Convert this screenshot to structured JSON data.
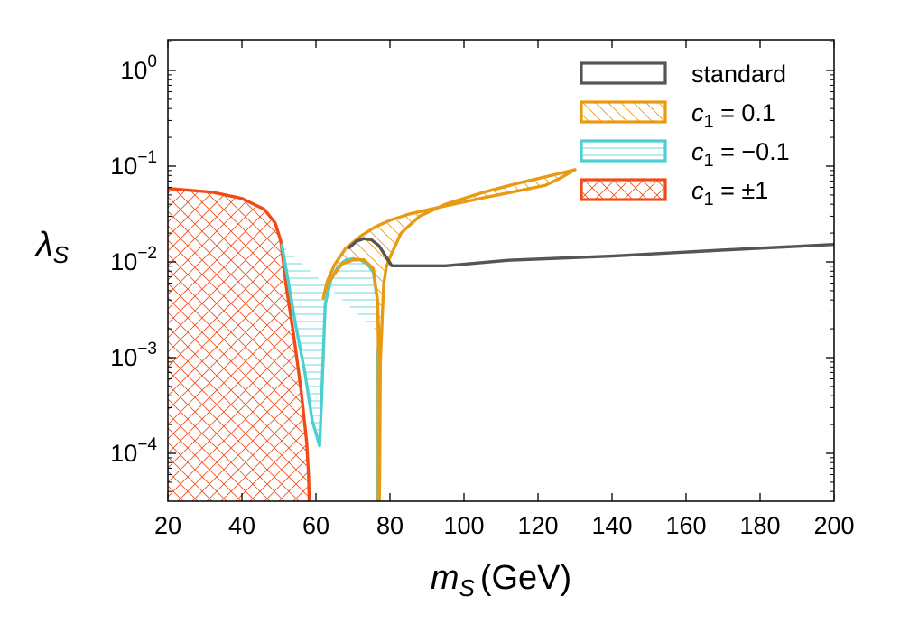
{
  "chart_data": {
    "type": "area",
    "title": "",
    "xlabel": {
      "symbol": "m",
      "subscript": "S",
      "unit": "(GeV)"
    },
    "ylabel": {
      "symbol": "λ",
      "subscript": "S"
    },
    "xlim": [
      20,
      200
    ],
    "ylim": [
      3e-05,
      2.5
    ],
    "yscale": "log",
    "grid": false,
    "legend_position": "top-right",
    "x_ticks": [
      20,
      40,
      60,
      80,
      100,
      120,
      140,
      160,
      180,
      200
    ],
    "x_tick_labels": [
      "20",
      "40",
      "60",
      "80",
      "100",
      "120",
      "140",
      "160",
      "180",
      "200"
    ],
    "y_ticks": [
      {
        "value": 0.0001,
        "base": "10",
        "exp": "−4"
      },
      {
        "value": 0.001,
        "base": "10",
        "exp": "−3"
      },
      {
        "value": 0.01,
        "base": "10",
        "exp": "−2"
      },
      {
        "value": 0.1,
        "base": "10",
        "exp": "−1"
      },
      {
        "value": 1,
        "base": "10",
        "exp": "0"
      }
    ],
    "series": [
      {
        "name": "standard",
        "label_parts": {
          "text": "standard"
        },
        "color": "#555555",
        "hatch": "none",
        "points": [
          [
            69,
            0.0141
          ],
          [
            71,
            0.0165
          ],
          [
            73,
            0.0175
          ],
          [
            75,
            0.017
          ],
          [
            77,
            0.0148
          ],
          [
            79,
            0.0112
          ],
          [
            80.5,
            0.0091
          ],
          [
            95,
            0.0091
          ],
          [
            112,
            0.0104
          ],
          [
            140,
            0.0115
          ],
          [
            170,
            0.0133
          ],
          [
            200,
            0.0152
          ]
        ]
      },
      {
        "name": "c1 = 0.1",
        "label_parts": {
          "symbol": "c",
          "subscript": "1",
          "value": " = 0.1"
        },
        "color": "#e89a12",
        "hatch": "backslash",
        "points": [
          [
            62,
            0.0042
          ],
          [
            63,
            0.0062
          ],
          [
            65,
            0.0093
          ],
          [
            68,
            0.0138
          ],
          [
            72,
            0.0185
          ],
          [
            76,
            0.0232
          ],
          [
            80,
            0.0272
          ],
          [
            85,
            0.0315
          ],
          [
            95,
            0.0385
          ],
          [
            105,
            0.0465
          ],
          [
            115,
            0.0555
          ],
          [
            122,
            0.063
          ],
          [
            126,
            0.075
          ],
          [
            130,
            0.092
          ],
          [
            123,
            0.079
          ],
          [
            115,
            0.067
          ],
          [
            105,
            0.053
          ],
          [
            95,
            0.04
          ],
          [
            88,
            0.03
          ],
          [
            83,
            0.02
          ],
          [
            80,
            0.0112
          ],
          [
            79,
            0.0088
          ],
          [
            78.3,
            0.0058
          ],
          [
            77.8,
            0.0021
          ],
          [
            77.4,
            0.0009
          ],
          [
            77.2,
            5e-05
          ],
          [
            77.1,
            3e-05
          ],
          [
            76.9,
            3e-05
          ],
          [
            76.9,
            0.0011
          ],
          [
            76.7,
            0.0038
          ],
          [
            75.5,
            0.0085
          ],
          [
            73,
            0.0105
          ],
          [
            70,
            0.0105
          ],
          [
            67,
            0.0095
          ],
          [
            65,
            0.0075
          ],
          [
            63,
            0.0058
          ],
          [
            62,
            0.0042
          ]
        ]
      },
      {
        "name": "c1 = −0.1",
        "label_parts": {
          "symbol": "c",
          "subscript": "1",
          "value": " = −0.1"
        },
        "color": "#4ccfd0",
        "hatch": "horizontal",
        "points": [
          [
            50.8,
            0.015
          ],
          [
            52.5,
            0.0063
          ],
          [
            54.5,
            0.0022
          ],
          [
            57,
            0.0007
          ],
          [
            59,
            0.00022
          ],
          [
            61,
            0.00012
          ],
          [
            61.5,
            0.00035
          ],
          [
            62.5,
            0.0036
          ],
          [
            64,
            0.0064
          ],
          [
            66,
            0.009
          ],
          [
            68,
            0.0104
          ],
          [
            70,
            0.0108
          ],
          [
            72,
            0.0105
          ],
          [
            74,
            0.0094
          ],
          [
            75.5,
            0.0078
          ],
          [
            76.5,
            0.0042
          ],
          [
            77,
            0.0018
          ],
          [
            77.3,
            0.0009
          ],
          [
            77.0,
            0.00035
          ],
          [
            77.0,
            3e-05
          ],
          [
            76.6,
            3e-05
          ],
          [
            76.7,
            0.001
          ],
          [
            77,
            0.0018
          ]
        ]
      },
      {
        "name": "c1 = ±1",
        "label_parts": {
          "symbol": "c",
          "subscript": "1",
          "value": " = ±1"
        },
        "color": "#f24a16",
        "hatch": "cross",
        "points": [
          [
            20,
            0.0585
          ],
          [
            32,
            0.0535
          ],
          [
            40,
            0.046
          ],
          [
            46,
            0.0355
          ],
          [
            49,
            0.0255
          ],
          [
            50.5,
            0.0165
          ],
          [
            52,
            0.0055
          ],
          [
            54,
            0.0017
          ],
          [
            56,
            0.00045
          ],
          [
            57.5,
            0.00013
          ],
          [
            58,
            6e-05
          ],
          [
            58.2,
            3e-05
          ],
          [
            40,
            2.9e-05
          ],
          [
            20,
            2.9e-05
          ]
        ]
      }
    ]
  }
}
